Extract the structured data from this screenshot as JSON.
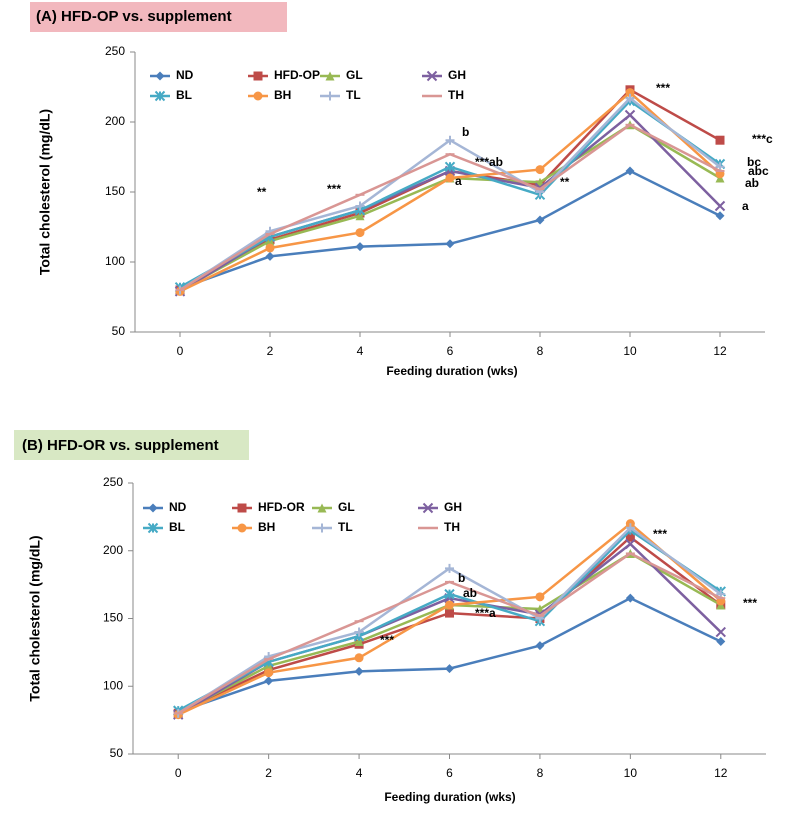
{
  "chart_data": [
    {
      "type": "line",
      "title": "(A) HFD-OP vs. supplement",
      "xlabel": "Feeding duration (wks)",
      "ylabel": "Total cholesterol (mg/dL)",
      "x": [
        0,
        2,
        4,
        6,
        8,
        10,
        12
      ],
      "xlim": [
        -1,
        13
      ],
      "xticks": [
        0,
        2,
        4,
        6,
        8,
        10,
        12
      ],
      "ylim": [
        50,
        250
      ],
      "yticks": [
        50,
        100,
        150,
        200,
        250
      ],
      "title_color": "#f2b8be",
      "series": [
        {
          "name": "ND",
          "color": "#4a7ebb",
          "marker": "diamond",
          "values": [
            81,
            104,
            111,
            113,
            130,
            165,
            133
          ]
        },
        {
          "name": "HFD-OP",
          "color": "#be4b48",
          "marker": "square",
          "values": [
            80,
            116,
            135,
            165,
            155,
            223,
            187
          ]
        },
        {
          "name": "GL",
          "color": "#98b954",
          "marker": "triangle",
          "values": [
            80,
            115,
            133,
            160,
            157,
            198,
            160
          ]
        },
        {
          "name": "GH",
          "color": "#7d60a0",
          "marker": "x",
          "values": [
            79,
            118,
            137,
            165,
            153,
            205,
            140
          ]
        },
        {
          "name": "BL",
          "color": "#46aac5",
          "marker": "star",
          "values": [
            82,
            118,
            137,
            168,
            148,
            215,
            170
          ]
        },
        {
          "name": "BH",
          "color": "#f79646",
          "marker": "circle",
          "values": [
            79,
            110,
            121,
            160,
            166,
            221,
            163
          ]
        },
        {
          "name": "TL",
          "color": "#a5b6d6",
          "marker": "plus",
          "values": [
            80,
            122,
            140,
            187,
            150,
            217,
            168
          ]
        },
        {
          "name": "TH",
          "color": "#d99694",
          "marker": "dash",
          "values": [
            80,
            120,
            148,
            177,
            152,
            198,
            165
          ]
        }
      ],
      "annotations": [
        "**",
        "***",
        "b",
        "***ab",
        "a",
        "**",
        "***",
        "***c",
        "bc",
        "abc",
        "ab",
        "a"
      ]
    },
    {
      "type": "line",
      "title": "(B) HFD-OR vs. supplement",
      "xlabel": "Feeding duration (wks)",
      "ylabel": "Total cholesterol (mg/dL)",
      "x": [
        0,
        2,
        4,
        6,
        8,
        10,
        12
      ],
      "xlim": [
        -1,
        13
      ],
      "xticks": [
        0,
        2,
        4,
        6,
        8,
        10,
        12
      ],
      "ylim": [
        50,
        250
      ],
      "yticks": [
        50,
        100,
        150,
        200,
        250
      ],
      "title_color": "#d8e8c4",
      "series": [
        {
          "name": "ND",
          "color": "#4a7ebb",
          "marker": "diamond",
          "values": [
            81,
            104,
            111,
            113,
            130,
            165,
            133
          ]
        },
        {
          "name": "HFD-OR",
          "color": "#be4b48",
          "marker": "square",
          "values": [
            80,
            112,
            131,
            154,
            150,
            210,
            160
          ]
        },
        {
          "name": "GL",
          "color": "#98b954",
          "marker": "triangle",
          "values": [
            80,
            115,
            133,
            160,
            157,
            198,
            160
          ]
        },
        {
          "name": "GH",
          "color": "#7d60a0",
          "marker": "x",
          "values": [
            79,
            118,
            137,
            165,
            153,
            205,
            140
          ]
        },
        {
          "name": "BL",
          "color": "#46aac5",
          "marker": "star",
          "values": [
            82,
            118,
            137,
            168,
            148,
            215,
            170
          ]
        },
        {
          "name": "BH",
          "color": "#f79646",
          "marker": "circle",
          "values": [
            79,
            110,
            121,
            160,
            166,
            220,
            163
          ]
        },
        {
          "name": "TL",
          "color": "#a5b6d6",
          "marker": "plus",
          "values": [
            80,
            122,
            140,
            187,
            150,
            217,
            168
          ]
        },
        {
          "name": "TH",
          "color": "#d99694",
          "marker": "dash",
          "values": [
            80,
            120,
            148,
            177,
            152,
            198,
            165
          ]
        }
      ],
      "annotations": [
        "b",
        "ab",
        "***a",
        "***",
        "***",
        "***"
      ]
    }
  ]
}
